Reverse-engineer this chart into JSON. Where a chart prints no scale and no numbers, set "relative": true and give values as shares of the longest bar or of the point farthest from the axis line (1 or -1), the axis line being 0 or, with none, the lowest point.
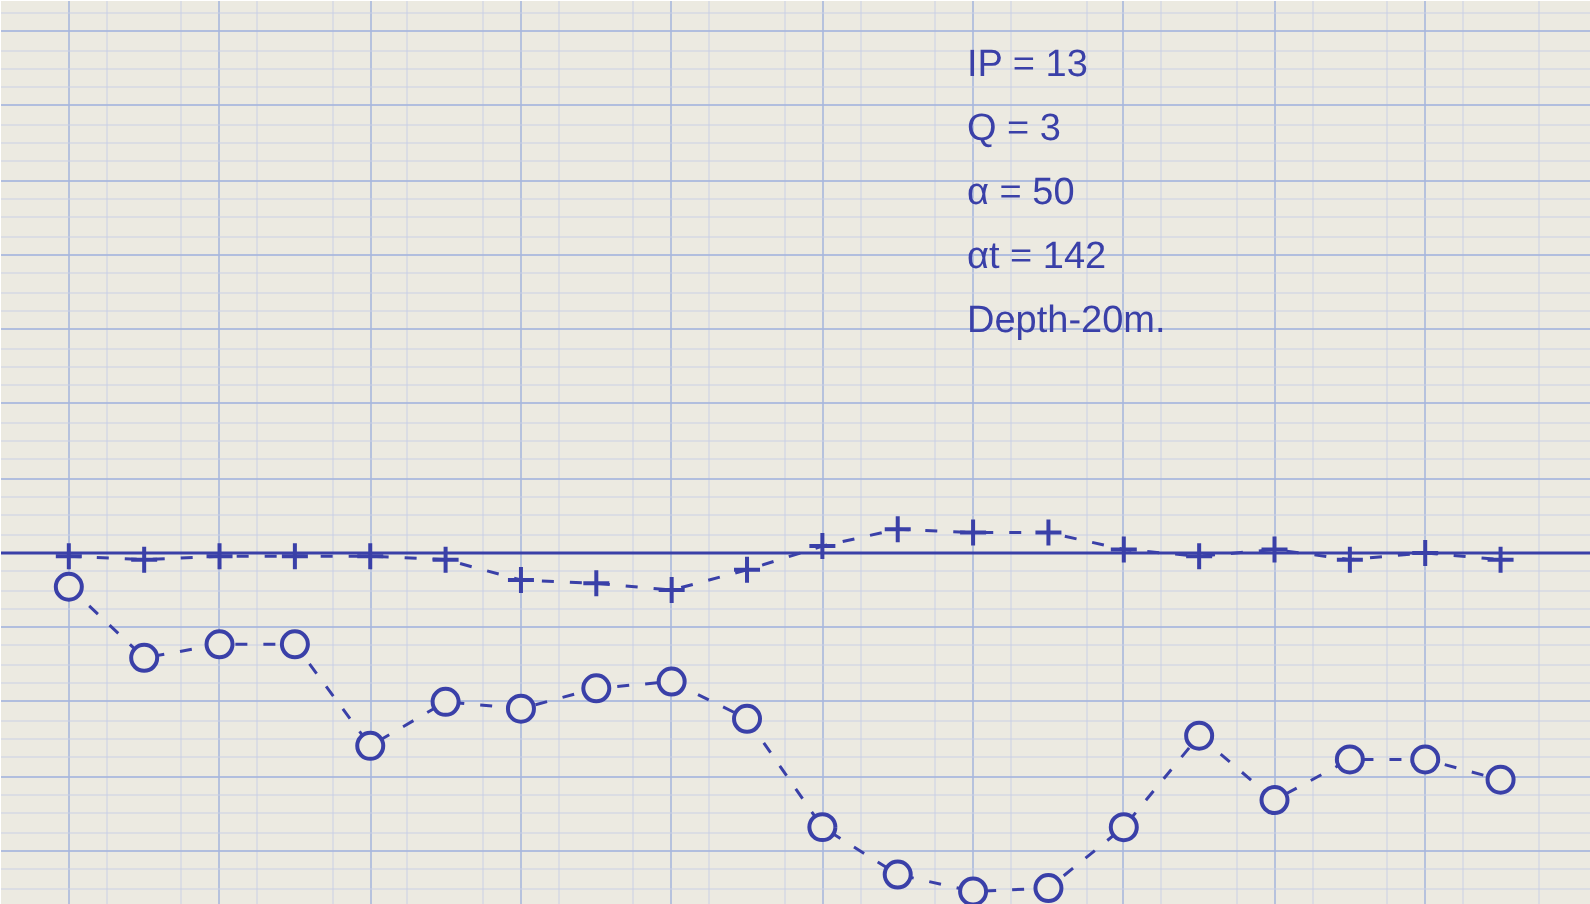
{
  "chart_data": {
    "type": "line",
    "relative": true,
    "categories": [
      null,
      null,
      null,
      null,
      null,
      null,
      null,
      null,
      null,
      null,
      null,
      null,
      null,
      null,
      null,
      null,
      null,
      null,
      null,
      null
    ],
    "series": [
      {
        "color": "#3a40a8",
        "marker": "cross",
        "line_style": "dashed",
        "values": [
          -0.01,
          -0.02,
          -0.01,
          -0.01,
          -0.01,
          -0.02,
          -0.08,
          -0.09,
          -0.11,
          -0.05,
          0.02,
          0.07,
          0.06,
          0.06,
          0.01,
          -0.01,
          0.01,
          -0.02,
          0,
          -0.02
        ]
      },
      {
        "color": "#3a40a8",
        "marker": "circle",
        "line_style": "dashed",
        "values": [
          -0.1,
          -0.31,
          -0.27,
          -0.27,
          -0.57,
          -0.44,
          -0.46,
          -0.4,
          -0.38,
          -0.49,
          -0.81,
          -0.95,
          -1,
          -0.99,
          -0.81,
          -0.54,
          -0.73,
          -0.61,
          -0.61,
          -0.67
        ]
      }
    ],
    "annotations": [
      "IP = 13",
      "Q = 3",
      "α = 50",
      "αt = 142",
      "Depth-20m."
    ],
    "ref_lines": [
      {
        "axis": "y",
        "value": 0,
        "color": "#3a40a8"
      }
    ],
    "grid": true
  }
}
